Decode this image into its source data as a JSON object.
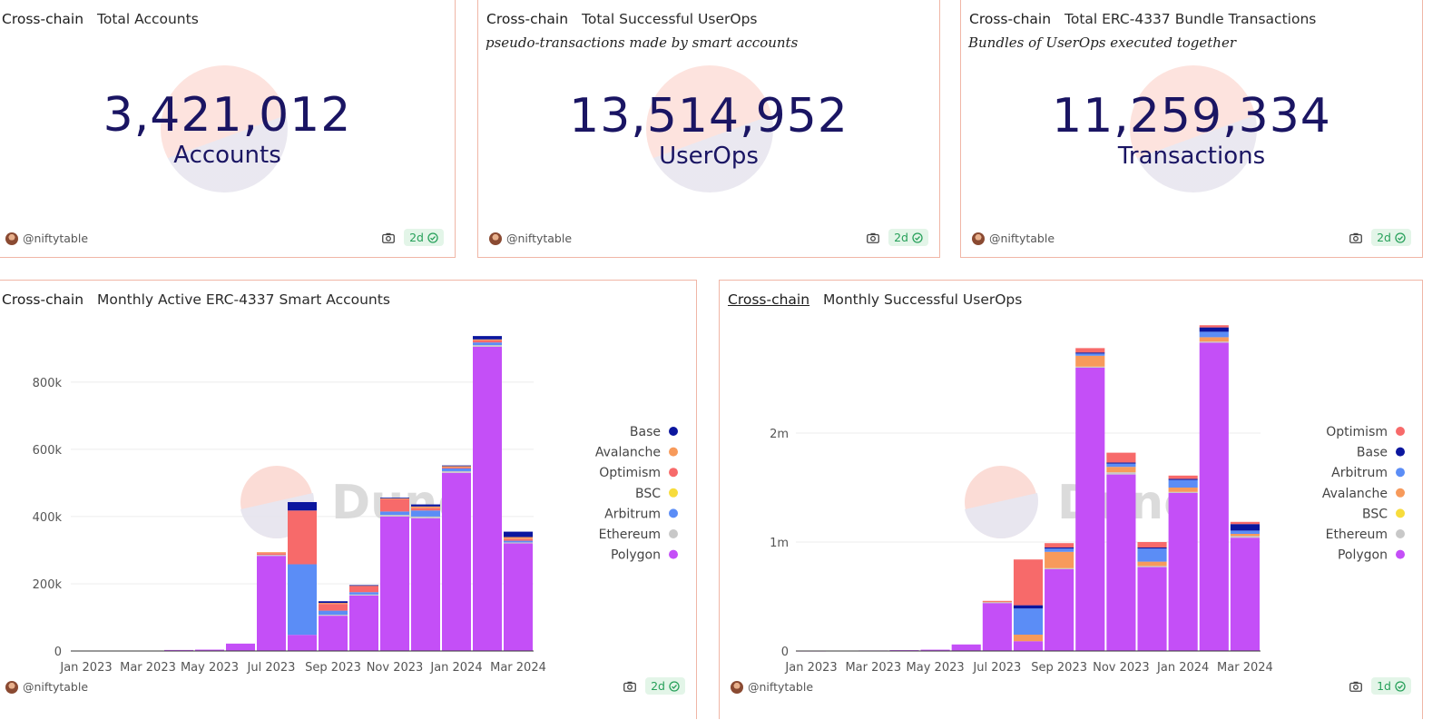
{
  "cards": [
    {
      "tag": "Cross-chain",
      "title": "Total Accounts",
      "subtitle": "",
      "value": "3,421,012",
      "unit": "Accounts",
      "author": "@niftytable",
      "age": "2d"
    },
    {
      "tag": "Cross-chain",
      "title": "Total Successful UserOps",
      "subtitle": "pseudo-transactions made by smart accounts",
      "value": "13,514,952",
      "unit": "UserOps",
      "author": "@niftytable",
      "age": "2d"
    },
    {
      "tag": "Cross-chain",
      "title": "Total ERC-4337 Bundle Transactions",
      "subtitle": "Bundles of UserOps executed together",
      "value": "11,259,334",
      "unit": "Transactions",
      "author": "@niftytable",
      "age": "2d"
    }
  ],
  "charts": [
    {
      "tag": "Cross-chain",
      "title": "Monthly Active ERC-4337 Smart Accounts",
      "author": "@niftytable",
      "age": "2d",
      "watermark": "Dune"
    },
    {
      "tag": "Cross-chain",
      "title": "Monthly Successful UserOps",
      "author": "@niftytable",
      "age": "1d",
      "watermark": "Dune"
    }
  ],
  "colors": {
    "Polygon": "#c44ff7",
    "Ethereum": "#c8c8c8",
    "Arbitrum": "#5b8df6",
    "BSC": "#f7dc3c",
    "Optimism": "#f76a6a",
    "Avalanche": "#f79a5b",
    "Base": "#0b169e"
  },
  "chart_data": [
    {
      "type": "bar",
      "stacked": true,
      "categories": [
        "Jan 2023",
        "Feb 2023",
        "Mar 2023",
        "Apr 2023",
        "May 2023",
        "Jun 2023",
        "Jul 2023",
        "Aug 2023",
        "Sep 2023",
        "Oct 2023",
        "Nov 2023",
        "Dec 2023",
        "Jan 2024",
        "Feb 2024",
        "Mar 2024"
      ],
      "x_tick_labels": [
        "Jan 2023",
        "Mar 2023",
        "May 2023",
        "Jul 2023",
        "Sep 2023",
        "Nov 2023",
        "Jan 2024",
        "Mar 2024"
      ],
      "ylim": [
        0,
        940000
      ],
      "y_ticks": [
        0,
        200000,
        400000,
        600000,
        800000
      ],
      "y_tick_labels": [
        "0",
        "200k",
        "400k",
        "600k",
        "800k"
      ],
      "legend_position": "right",
      "legend": [
        "Base",
        "Avalanche",
        "Optimism",
        "BSC",
        "Arbitrum",
        "Ethereum",
        "Polygon"
      ],
      "series": [
        {
          "name": "Polygon",
          "values": [
            1000,
            1000,
            1000,
            3000,
            4000,
            22000,
            283000,
            48000,
            105000,
            165000,
            400000,
            395000,
            530000,
            905000,
            320000
          ]
        },
        {
          "name": "Ethereum",
          "values": [
            0,
            0,
            0,
            0,
            0,
            0,
            3000,
            0,
            3000,
            3000,
            5000,
            5000,
            5000,
            5000,
            3000
          ]
        },
        {
          "name": "Arbitrum",
          "values": [
            0,
            0,
            0,
            0,
            0,
            0,
            0,
            210000,
            12000,
            7000,
            10000,
            18000,
            8000,
            8000,
            5000
          ]
        },
        {
          "name": "BSC",
          "values": [
            0,
            0,
            0,
            0,
            0,
            0,
            0,
            0,
            0,
            0,
            0,
            0,
            0,
            0,
            0
          ]
        },
        {
          "name": "Optimism",
          "values": [
            0,
            0,
            0,
            0,
            0,
            0,
            5000,
            160000,
            20000,
            18000,
            37000,
            7000,
            3000,
            6000,
            5000
          ]
        },
        {
          "name": "Avalanche",
          "values": [
            0,
            0,
            0,
            0,
            0,
            0,
            3000,
            0,
            3000,
            2000,
            2000,
            5000,
            4000,
            3000,
            6000
          ]
        },
        {
          "name": "Base",
          "values": [
            0,
            0,
            0,
            0,
            0,
            0,
            0,
            25000,
            5000,
            1000,
            2000,
            6000,
            2000,
            10000,
            16000
          ]
        }
      ]
    },
    {
      "type": "bar",
      "stacked": true,
      "categories": [
        "Jan 2023",
        "Feb 2023",
        "Mar 2023",
        "Apr 2023",
        "May 2023",
        "Jun 2023",
        "Jul 2023",
        "Aug 2023",
        "Sep 2023",
        "Oct 2023",
        "Nov 2023",
        "Dec 2023",
        "Jan 2024",
        "Feb 2024",
        "Mar 2024"
      ],
      "x_tick_labels": [
        "Jan 2023",
        "Mar 2023",
        "May 2023",
        "Jul 2023",
        "Sep 2023",
        "Nov 2023",
        "Jan 2024",
        "Mar 2024"
      ],
      "ylim": [
        0,
        2900000
      ],
      "y_ticks": [
        0,
        1000000,
        2000000
      ],
      "y_tick_labels": [
        "0",
        "1m",
        "2m"
      ],
      "legend_position": "right",
      "legend": [
        "Optimism",
        "Base",
        "Arbitrum",
        "Avalanche",
        "BSC",
        "Ethereum",
        "Polygon"
      ],
      "series": [
        {
          "name": "Polygon",
          "values": [
            2000,
            3000,
            5000,
            8000,
            12000,
            60000,
            440000,
            90000,
            750000,
            2600000,
            1620000,
            770000,
            1450000,
            2830000,
            1040000
          ]
        },
        {
          "name": "Ethereum",
          "values": [
            0,
            0,
            0,
            0,
            0,
            0,
            10000,
            0,
            10000,
            10000,
            20000,
            10000,
            10000,
            10000,
            15000
          ]
        },
        {
          "name": "BSC",
          "values": [
            0,
            0,
            0,
            0,
            0,
            0,
            0,
            0,
            0,
            0,
            0,
            0,
            0,
            0,
            0
          ]
        },
        {
          "name": "Avalanche",
          "values": [
            0,
            0,
            0,
            0,
            0,
            0,
            5000,
            60000,
            150000,
            100000,
            50000,
            40000,
            40000,
            40000,
            20000
          ]
        },
        {
          "name": "Arbitrum",
          "values": [
            0,
            0,
            0,
            0,
            0,
            0,
            0,
            240000,
            30000,
            20000,
            30000,
            120000,
            70000,
            50000,
            30000
          ]
        },
        {
          "name": "Base",
          "values": [
            0,
            0,
            0,
            0,
            0,
            0,
            0,
            30000,
            10000,
            10000,
            10000,
            10000,
            10000,
            40000,
            60000
          ]
        },
        {
          "name": "Optimism",
          "values": [
            0,
            0,
            0,
            0,
            0,
            0,
            5000,
            420000,
            40000,
            40000,
            90000,
            50000,
            30000,
            20000,
            20000
          ]
        }
      ]
    }
  ]
}
